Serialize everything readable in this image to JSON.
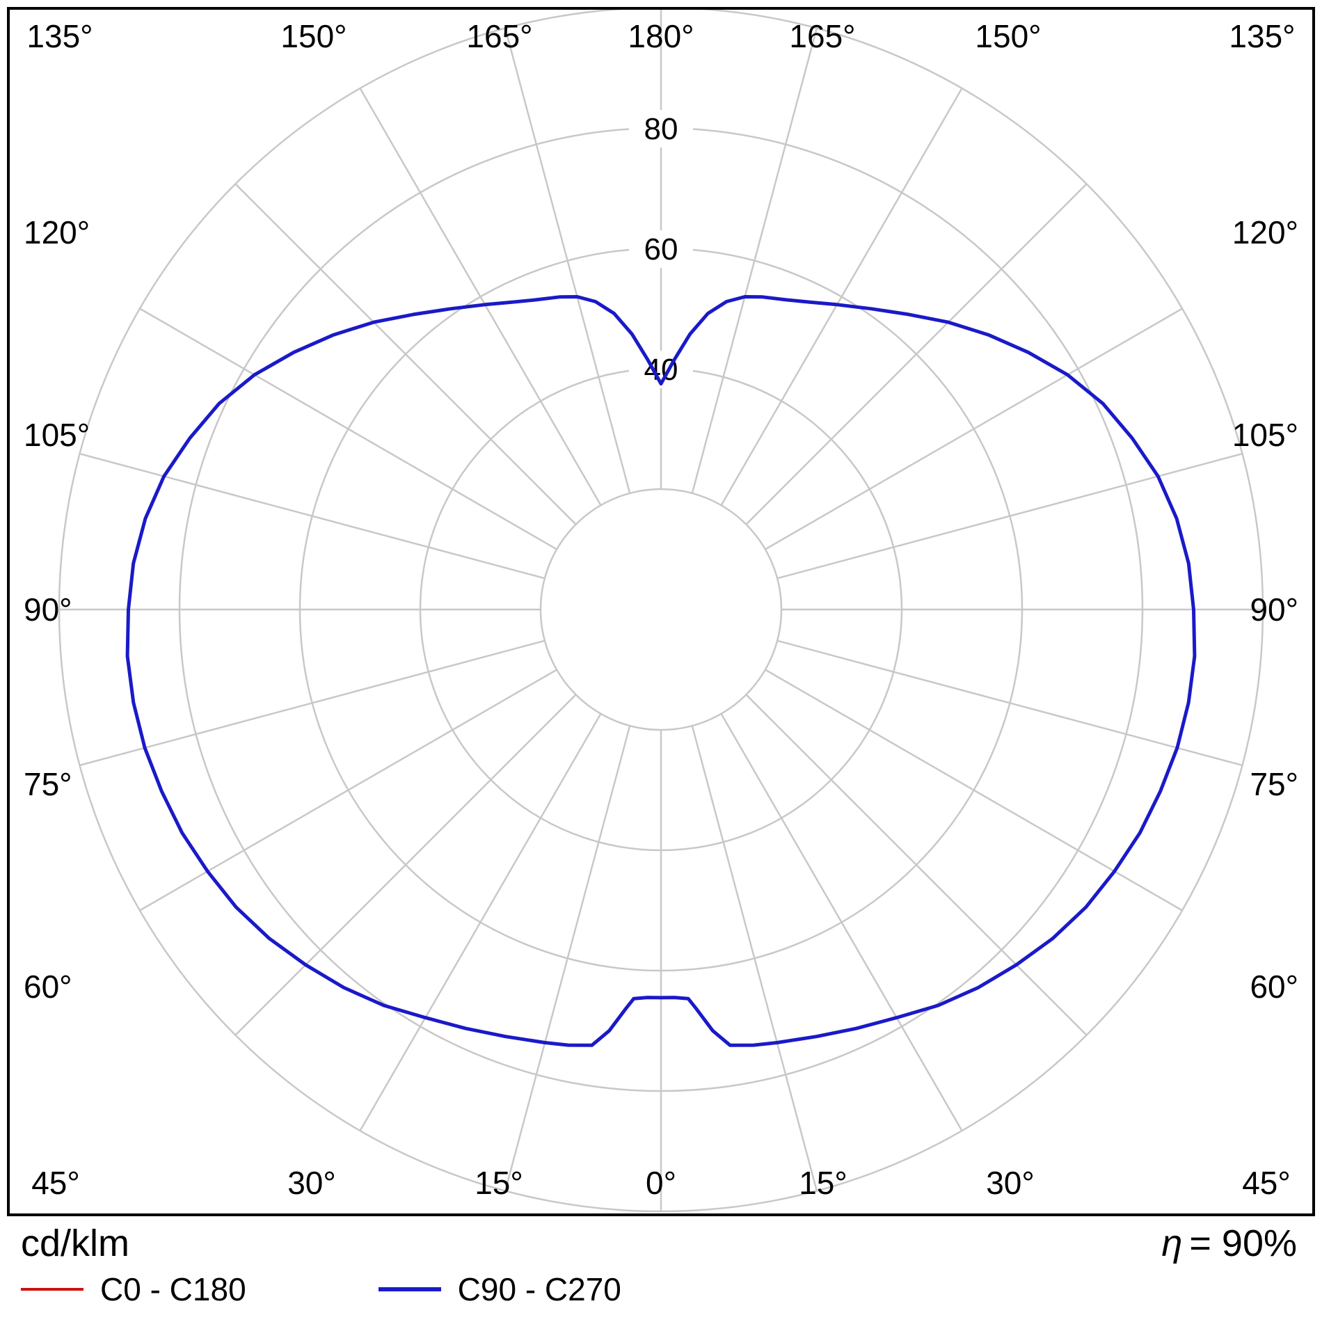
{
  "footer": {
    "unit": "cd/klm",
    "eta_symbol": "η",
    "eta_value": "= 90%"
  },
  "legend": [
    {
      "label": "C0 - C180",
      "color": "#cc1111"
    },
    {
      "label": "C90 - C270",
      "color": "#1a1ac8"
    }
  ],
  "chart_data": {
    "type": "polar",
    "subtype": "photometric-intensity-distribution",
    "unit": "cd/klm",
    "efficiency": "90%",
    "angle_step_deg": 15,
    "angle_ticks": [
      0,
      15,
      30,
      45,
      60,
      75,
      90,
      105,
      120,
      135,
      150,
      165,
      180
    ],
    "angle_tick_labels": [
      "0°",
      "15°",
      "30°",
      "45°",
      "60°",
      "75°",
      "90°",
      "105°",
      "120°",
      "135°",
      "150°",
      "165°",
      "180°"
    ],
    "radial_ticks": [
      20,
      40,
      60,
      80,
      100
    ],
    "radial_tick_labels": [
      {
        "value": 40,
        "label": "40"
      },
      {
        "value": 60,
        "label": "60"
      },
      {
        "value": 80,
        "label": "80"
      }
    ],
    "rmax": 100,
    "grid_color": "#c8c8c8",
    "series": [
      {
        "name": "C0 - C180",
        "color": "#cc1111",
        "gamma": [
          0,
          2,
          4,
          5,
          7,
          9,
          12,
          15,
          20,
          25,
          30,
          35,
          40,
          45,
          50,
          55,
          60,
          65,
          70,
          75,
          80,
          85,
          90,
          95,
          100,
          105,
          110,
          115,
          120,
          125,
          130,
          135,
          140,
          145,
          150,
          154,
          158,
          162,
          165,
          168,
          171,
          174,
          177,
          180
        ],
        "values": [
          64.5,
          64.5,
          64.8,
          66.5,
          70.5,
          73.3,
          74.0,
          74.5,
          75.5,
          76.8,
          78.3,
          80.3,
          82.0,
          83.5,
          85.0,
          86.2,
          87.0,
          87.8,
          88.3,
          88.8,
          89.0,
          89.0,
          88.5,
          88.0,
          87.0,
          85.5,
          83.3,
          81.0,
          78.0,
          74.5,
          71.0,
          67.5,
          64.0,
          61.0,
          58.5,
          56.8,
          55.5,
          54.6,
          53.8,
          52.3,
          49.8,
          46.0,
          41.5,
          37.5
        ]
      },
      {
        "name": "C90 - C270",
        "color": "#1a1ac8",
        "gamma": [
          0,
          2,
          4,
          5,
          7,
          9,
          12,
          15,
          20,
          25,
          30,
          35,
          40,
          45,
          50,
          55,
          60,
          65,
          70,
          75,
          80,
          85,
          90,
          95,
          100,
          105,
          110,
          115,
          120,
          125,
          130,
          135,
          140,
          145,
          150,
          154,
          158,
          162,
          165,
          168,
          171,
          174,
          177,
          180
        ],
        "values": [
          64.5,
          64.5,
          64.8,
          66.5,
          70.5,
          73.3,
          74.0,
          74.5,
          75.5,
          76.8,
          78.3,
          80.3,
          82.0,
          83.5,
          85.0,
          86.2,
          87.0,
          87.8,
          88.3,
          88.8,
          89.0,
          89.0,
          88.5,
          88.0,
          87.0,
          85.5,
          83.3,
          81.0,
          78.0,
          74.5,
          71.0,
          67.5,
          64.0,
          61.0,
          58.5,
          56.8,
          55.5,
          54.6,
          53.8,
          52.3,
          49.8,
          46.0,
          41.5,
          37.5
        ]
      }
    ]
  }
}
